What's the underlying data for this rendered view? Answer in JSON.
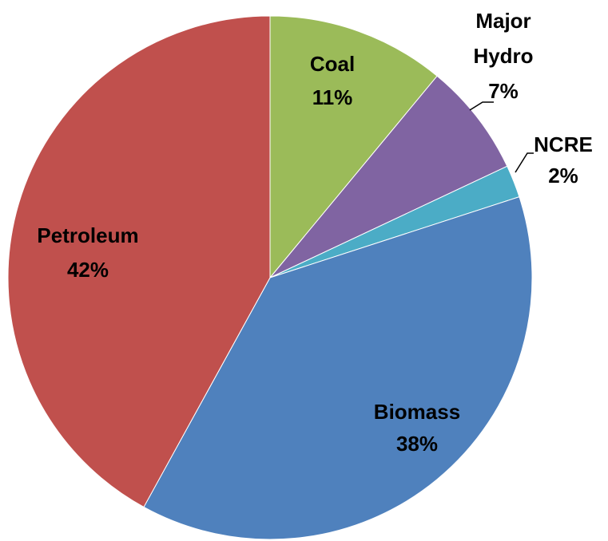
{
  "chart_data": {
    "type": "pie",
    "categories": [
      "Coal",
      "Major Hydro",
      "NCRE",
      "Biomass",
      "Petroleum"
    ],
    "values": [
      11,
      7,
      2,
      38,
      42
    ],
    "value_labels": [
      "11%",
      "7%",
      "2%",
      "38%",
      "42%"
    ],
    "colors": [
      "#9bbb59",
      "#8064a2",
      "#4bacc6",
      "#4f81bd",
      "#c0504d"
    ]
  }
}
